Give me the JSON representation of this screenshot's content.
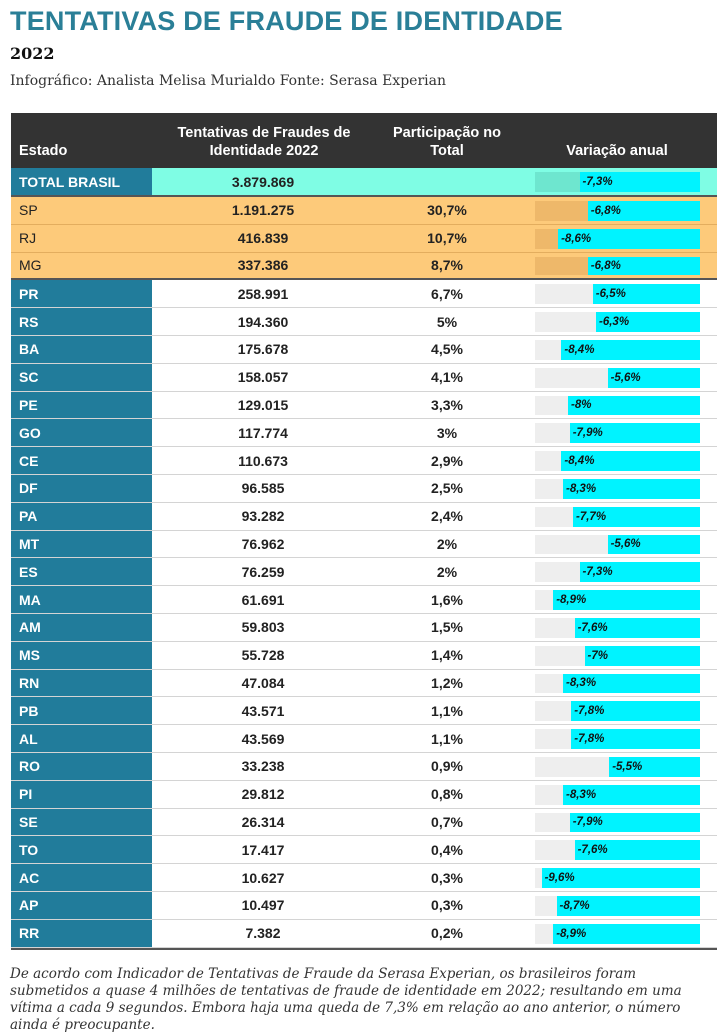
{
  "header": {
    "title": "TENTATIVAS DE FRAUDE DE IDENTIDADE",
    "subtitle": "2022",
    "credit": "Infográfico: Analista Melisa Murialdo Fonte: Serasa Experian"
  },
  "columns": {
    "estado": "Estado",
    "tentativas": "Tentativas de Fraudes de Identidade 2022",
    "participacao": "Participação no Total",
    "variacao": "Variação anual"
  },
  "colors": {
    "title": "#2a7f97",
    "state_column": "#217c9b",
    "total_row": "#7ffde4",
    "top3_rows": "#fdca7a",
    "bar": "#00f3ff",
    "header_bg": "#333333"
  },
  "chart_data": {
    "type": "table",
    "variation_axis": [
      -10,
      0
    ],
    "total": {
      "estado": "TOTAL BRASIL",
      "tentativas": "3.879.869",
      "participacao": "",
      "variacao": -7.3,
      "variacao_label": "-7,3%"
    },
    "rows": [
      {
        "estado": "SP",
        "tentativas": "1.191.275",
        "participacao": "30,7%",
        "variacao": -6.8,
        "variacao_label": "-6,8%",
        "highlight": true
      },
      {
        "estado": "RJ",
        "tentativas": "416.839",
        "participacao": "10,7%",
        "variacao": -8.6,
        "variacao_label": "-8,6%",
        "highlight": true
      },
      {
        "estado": "MG",
        "tentativas": "337.386",
        "participacao": "8,7%",
        "variacao": -6.8,
        "variacao_label": "-6,8%",
        "highlight": true
      },
      {
        "estado": "PR",
        "tentativas": "258.991",
        "participacao": "6,7%",
        "variacao": -6.5,
        "variacao_label": "-6,5%"
      },
      {
        "estado": "RS",
        "tentativas": "194.360",
        "participacao": "5%",
        "variacao": -6.3,
        "variacao_label": "-6,3%"
      },
      {
        "estado": "BA",
        "tentativas": "175.678",
        "participacao": "4,5%",
        "variacao": -8.4,
        "variacao_label": "-8,4%"
      },
      {
        "estado": "SC",
        "tentativas": "158.057",
        "participacao": "4,1%",
        "variacao": -5.6,
        "variacao_label": "-5,6%"
      },
      {
        "estado": "PE",
        "tentativas": "129.015",
        "participacao": "3,3%",
        "variacao": -8.0,
        "variacao_label": "-8%"
      },
      {
        "estado": "GO",
        "tentativas": "117.774",
        "participacao": "3%",
        "variacao": -7.9,
        "variacao_label": "-7,9%"
      },
      {
        "estado": "CE",
        "tentativas": "110.673",
        "participacao": "2,9%",
        "variacao": -8.4,
        "variacao_label": "-8,4%"
      },
      {
        "estado": "DF",
        "tentativas": "96.585",
        "participacao": "2,5%",
        "variacao": -8.3,
        "variacao_label": "-8,3%"
      },
      {
        "estado": "PA",
        "tentativas": "93.282",
        "participacao": "2,4%",
        "variacao": -7.7,
        "variacao_label": "-7,7%"
      },
      {
        "estado": "MT",
        "tentativas": "76.962",
        "participacao": "2%",
        "variacao": -5.6,
        "variacao_label": "-5,6%"
      },
      {
        "estado": "ES",
        "tentativas": "76.259",
        "participacao": "2%",
        "variacao": -7.3,
        "variacao_label": "-7,3%"
      },
      {
        "estado": "MA",
        "tentativas": "61.691",
        "participacao": "1,6%",
        "variacao": -8.9,
        "variacao_label": "-8,9%"
      },
      {
        "estado": "AM",
        "tentativas": "59.803",
        "participacao": "1,5%",
        "variacao": -7.6,
        "variacao_label": "-7,6%"
      },
      {
        "estado": "MS",
        "tentativas": "55.728",
        "participacao": "1,4%",
        "variacao": -7.0,
        "variacao_label": "-7%"
      },
      {
        "estado": "RN",
        "tentativas": "47.084",
        "participacao": "1,2%",
        "variacao": -8.3,
        "variacao_label": "-8,3%"
      },
      {
        "estado": "PB",
        "tentativas": "43.571",
        "participacao": "1,1%",
        "variacao": -7.8,
        "variacao_label": "-7,8%"
      },
      {
        "estado": "AL",
        "tentativas": "43.569",
        "participacao": "1,1%",
        "variacao": -7.8,
        "variacao_label": "-7,8%"
      },
      {
        "estado": "RO",
        "tentativas": "33.238",
        "participacao": "0,9%",
        "variacao": -5.5,
        "variacao_label": "-5,5%"
      },
      {
        "estado": "PI",
        "tentativas": "29.812",
        "participacao": "0,8%",
        "variacao": -8.3,
        "variacao_label": "-8,3%"
      },
      {
        "estado": "SE",
        "tentativas": "26.314",
        "participacao": "0,7%",
        "variacao": -7.9,
        "variacao_label": "-7,9%"
      },
      {
        "estado": "TO",
        "tentativas": "17.417",
        "participacao": "0,4%",
        "variacao": -7.6,
        "variacao_label": "-7,6%"
      },
      {
        "estado": "AC",
        "tentativas": "10.627",
        "participacao": "0,3%",
        "variacao": -9.6,
        "variacao_label": "-9,6%"
      },
      {
        "estado": "AP",
        "tentativas": "10.497",
        "participacao": "0,3%",
        "variacao": -8.7,
        "variacao_label": "-8,7%"
      },
      {
        "estado": "RR",
        "tentativas": "7.382",
        "participacao": "0,2%",
        "variacao": -8.9,
        "variacao_label": "-8,9%"
      }
    ]
  },
  "footnote": "De acordo com Indicador de Tentativas de Fraude da Serasa Experian, os brasileiros foram submetidos a quase 4 milhões de tentativas de fraude de identidade em 2022; resultando em uma vítima a cada 9 segundos. Embora haja uma queda de 7,3% em relação ao ano anterior, o número ainda é preocupante."
}
